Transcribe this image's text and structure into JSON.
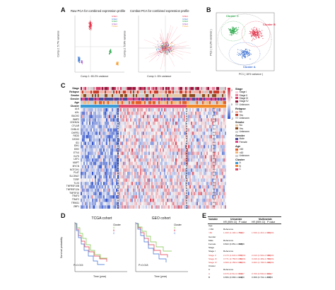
{
  "panels": {
    "A": "A",
    "B": "B",
    "C": "C",
    "D": "D",
    "E": "E"
  },
  "panelA": {
    "left_title": "Raw PCA for combined expression profile",
    "left_xlabel": "Comp 1: 65.2% variance",
    "left_ylabel": "Comp 2: 5.7% variance",
    "right_title": "Combat PCA for combined expression profile",
    "right_xlabel": "Comp 1: 6% variance",
    "right_ylabel": "Comp 2: 5.6% variance",
    "legend_left": [
      "GSE1",
      "GSE2",
      "GSE3",
      "GSE4",
      "TCGA"
    ],
    "legend_right": [
      "GSE1",
      "GSE2",
      "GSE3",
      "GSE4",
      "TCGA"
    ],
    "colors": [
      "#e8334a",
      "#3a7bd5",
      "#2aa84a",
      "#a14fc2",
      "#f59b2a"
    ]
  },
  "panelB": {
    "ylabel": "PC2 ( 13.2% variance )",
    "xlabel": "PC1 ( 16% variance )",
    "clusterA": "Cluster A",
    "clusterB": "Cluster B",
    "clusterC": "Cluster C",
    "colors": {
      "A": "#3a6fd1",
      "B": "#e2334a",
      "C": "#2aa84a"
    }
  },
  "panelC": {
    "annotation_labels": [
      "Stage",
      "Relapse",
      "Smoke",
      "Gender",
      "Age",
      "Cluster"
    ],
    "genes": [
      "ALK",
      "AXL",
      "BACH2",
      "BMP2",
      "CDKN2A",
      "CFLAR",
      "DVBLIC",
      "DHFR1",
      "FADD",
      "GATA3",
      "ID1",
      "IDH1",
      "IDH2",
      "ETV4",
      "KLF5",
      "LEF1",
      "MAPT",
      "MYCN",
      "NOTCH1",
      "PLAT",
      "SLC39A7",
      "TERF",
      "TLX3",
      "TNFRSF10B",
      "TNFRSF12A",
      "TNFSF10",
      "TRAF3",
      "TRAF2",
      "TRIM11",
      "ZBP1"
    ],
    "legend": {
      "stage_title": "Stage",
      "stage": [
        "Stage I",
        "Stage II",
        "Stage III",
        "Stage IV",
        "Unknown"
      ],
      "relapse_title": "Relapse",
      "relapse": [
        "No",
        "Yes",
        "Unknown"
      ],
      "smoke_title": "Smoke",
      "smoke": [
        "No",
        "Yes",
        "Unknown"
      ],
      "gender_title": "Gender",
      "gender": [
        "Male",
        "Female"
      ],
      "age_title": "Age",
      "age": [
        ">60",
        "<60",
        "Unknown"
      ],
      "cluster_title": "Cluster",
      "cluster": [
        "A",
        "B",
        "C"
      ],
      "scale": [
        "2",
        "1",
        "0",
        "-1",
        "-2"
      ]
    }
  },
  "panelD": {
    "left_title": "TCGA cohort",
    "right_title": "GEO cohort",
    "ylabel": "Survival probability",
    "xlabel": "Time (year)",
    "legend_title": "Cluster",
    "legend": [
      "A",
      "B",
      "C"
    ],
    "left_p": "P=0.015",
    "right_p": "P=0.018",
    "x_ticks": [
      "0",
      "5",
      "10",
      "15",
      "20"
    ],
    "y_ticks": [
      "0.0",
      "0.2",
      "0.4",
      "0.6",
      "0.8",
      "1.0"
    ]
  },
  "panelE": {
    "headers": [
      "Variable",
      "Univariate",
      "Multivariate"
    ],
    "subheaders": [
      "HR (95% CI)",
      "P value",
      "HR (95% CI)",
      "P value"
    ],
    "rows": [
      {
        "v": "Age",
        "u": "",
        "up": "",
        "m": "",
        "mp": "",
        "red": false
      },
      {
        "v": "<=60",
        "u": "Reference",
        "up": "",
        "m": "",
        "mp": "",
        "red": false
      },
      {
        "v": ">60",
        "u": "1.400 (1.100-1.750)",
        "up": "0.002",
        "m": "1.546 (1.210-1.982)",
        "mp": "<0.001",
        "red": true
      },
      {
        "v": "Gender",
        "u": "",
        "up": "",
        "m": "",
        "mp": "",
        "red": false
      },
      {
        "v": "Male",
        "u": "Reference",
        "up": "",
        "m": "",
        "mp": "",
        "red": false
      },
      {
        "v": "Female",
        "u": "0.822 (0.651-1.038)",
        "up": "0.099",
        "m": "",
        "mp": "",
        "red": false
      },
      {
        "v": "Stage",
        "u": "",
        "up": "",
        "m": "",
        "mp": "",
        "red": false
      },
      {
        "v": "Stage I",
        "u": "Reference",
        "up": "",
        "m": "",
        "mp": "",
        "red": false
      },
      {
        "v": "Stage II",
        "u": "2.173 (1.643-2.874)",
        "up": "<0.001",
        "m": "2.010 (1.502-2.690)",
        "mp": "<0.001",
        "red": true
      },
      {
        "v": "Stage III",
        "u": "3.771 (2.758-5.156)",
        "up": "<0.001",
        "m": "3.446 (2.499-4.752)",
        "mp": "<0.001",
        "red": true
      },
      {
        "v": "Stage IV",
        "u": "3.600 (2.158-6.006)",
        "up": "<0.001",
        "m": "3.063 (1.796-5.224)",
        "mp": "<0.001",
        "red": true
      },
      {
        "v": "Cluster",
        "u": "",
        "up": "",
        "m": "",
        "mp": "",
        "red": false
      },
      {
        "v": "C",
        "u": "Reference",
        "up": "",
        "m": "",
        "mp": "",
        "red": false
      },
      {
        "v": "A",
        "u": "0.679 (0.512-0.901)",
        "up": "0.007",
        "m": "0.706 (0.530-0.940)",
        "mp": "0.017",
        "red": true
      },
      {
        "v": "B",
        "u": "0.866 (0.668-1.124)",
        "up": "0.280",
        "m": "0.958 (0.732-1.253)",
        "mp": "0.753",
        "red": false
      }
    ]
  }
}
